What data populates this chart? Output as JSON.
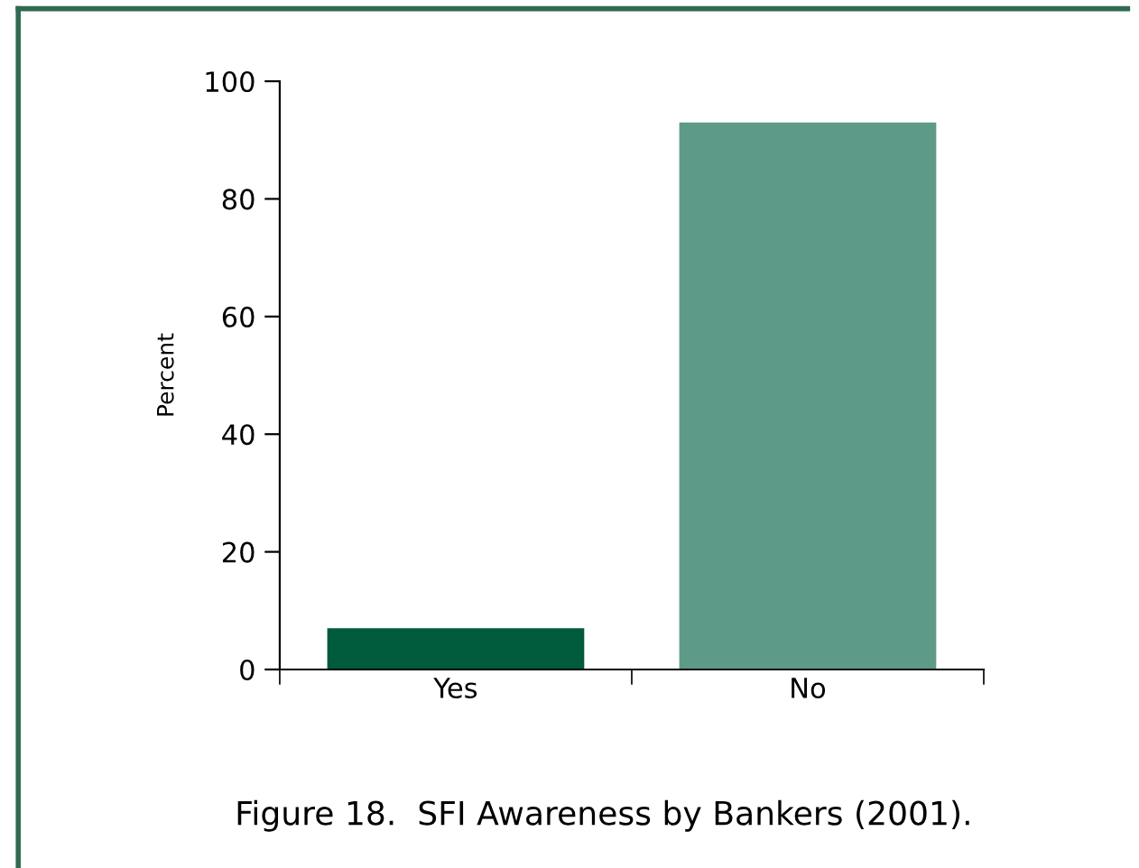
{
  "chart_data": {
    "type": "bar",
    "title": "Figure 18.  SFI Awareness by Bankers (2001).",
    "ylabel": "Percent",
    "categories": [
      "Yes",
      "No"
    ],
    "values": [
      7,
      93
    ],
    "colors": [
      "#005a3c",
      "#5e9a88"
    ],
    "ylim": [
      0,
      100
    ],
    "yticks": [
      0,
      20,
      40,
      60,
      80,
      100
    ],
    "grid": false,
    "legend": false
  }
}
